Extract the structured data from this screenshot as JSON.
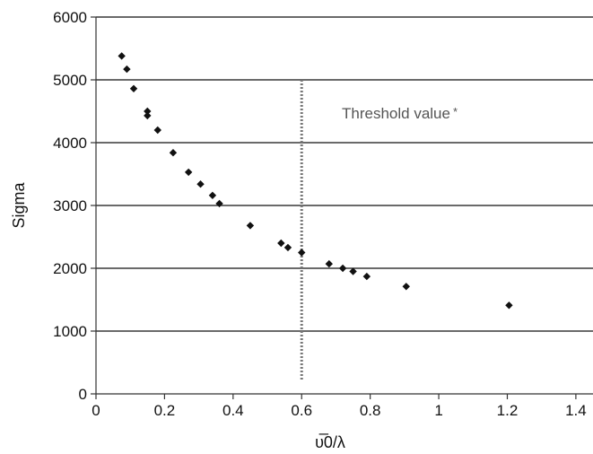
{
  "chart_data": {
    "type": "scatter",
    "title": "",
    "xlabel": "υ̅0/λ",
    "ylabel": "Sigma",
    "xlim": [
      0,
      1.45
    ],
    "ylim": [
      0,
      6000
    ],
    "x_ticks": [
      0,
      0.2,
      0.4,
      0.6,
      0.8,
      1,
      1.2,
      1.4
    ],
    "x_tick_labels": [
      "0",
      "0.2",
      "0.4",
      "0.6",
      "0.8",
      "1",
      "1.2",
      "1.4"
    ],
    "y_ticks": [
      0,
      1000,
      2000,
      3000,
      4000,
      5000,
      6000
    ],
    "y_tick_labels": [
      "0",
      "1000",
      "2000",
      "3000",
      "4000",
      "5000",
      "6000"
    ],
    "grid": "horizontal",
    "legend": "none",
    "marker": "diamond",
    "colors": {
      "points": "#111111",
      "axes": "#333333",
      "grid": "#111111",
      "threshold": "#777777",
      "annotation": "#555555"
    },
    "points": [
      {
        "x": 0.075,
        "y": 5380
      },
      {
        "x": 0.09,
        "y": 5170
      },
      {
        "x": 0.11,
        "y": 4860
      },
      {
        "x": 0.15,
        "y": 4500
      },
      {
        "x": 0.15,
        "y": 4430
      },
      {
        "x": 0.18,
        "y": 4200
      },
      {
        "x": 0.225,
        "y": 3840
      },
      {
        "x": 0.27,
        "y": 3530
      },
      {
        "x": 0.305,
        "y": 3340
      },
      {
        "x": 0.34,
        "y": 3160
      },
      {
        "x": 0.36,
        "y": 3030
      },
      {
        "x": 0.45,
        "y": 2680
      },
      {
        "x": 0.54,
        "y": 2400
      },
      {
        "x": 0.56,
        "y": 2330
      },
      {
        "x": 0.6,
        "y": 2250
      },
      {
        "x": 0.68,
        "y": 2070
      },
      {
        "x": 0.72,
        "y": 2000
      },
      {
        "x": 0.75,
        "y": 1950
      },
      {
        "x": 0.79,
        "y": 1870
      },
      {
        "x": 0.905,
        "y": 1710
      },
      {
        "x": 1.205,
        "y": 1410
      }
    ],
    "threshold": {
      "x": 0.6,
      "y_from": 200,
      "y_to": 5000,
      "label": "Threshold value",
      "label_marker": "*"
    }
  }
}
